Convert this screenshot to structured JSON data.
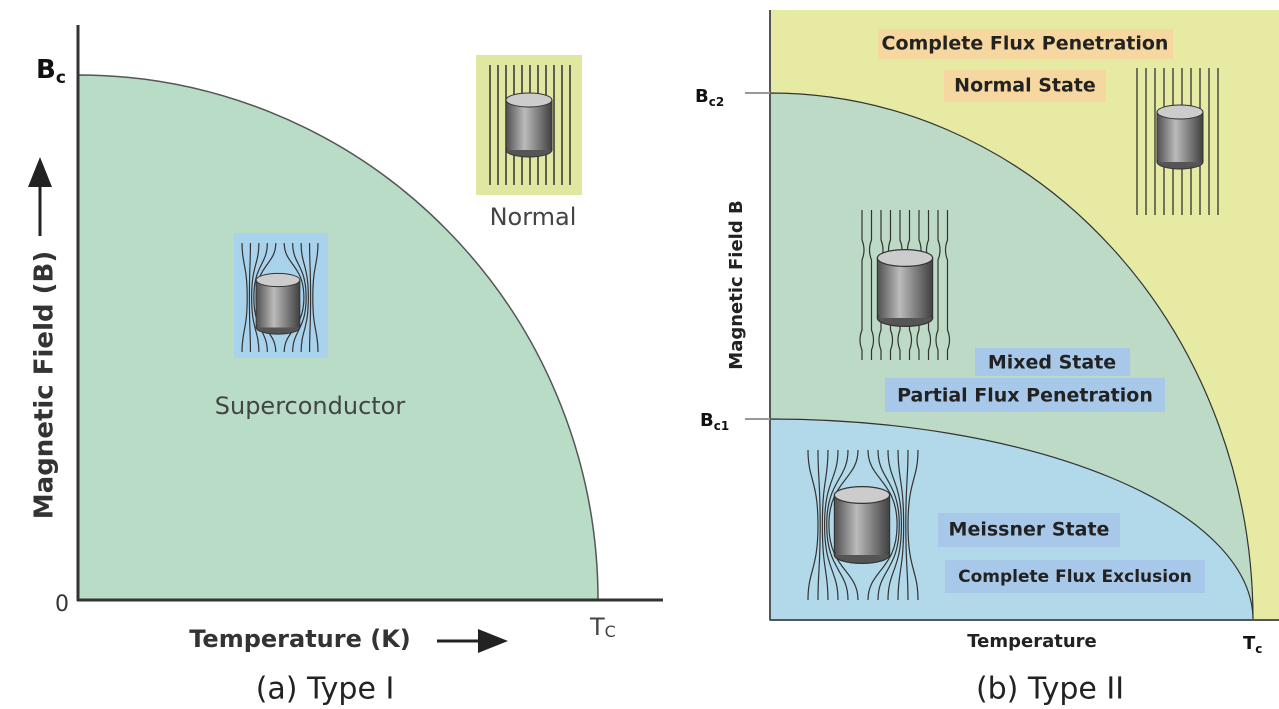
{
  "type_1": {
    "y_axis_top_label": {
      "main": "B",
      "sub": "c"
    },
    "y_axis_title": "Magnetic Field (B)",
    "origin_label": "0",
    "x_axis_title": "Temperature (K)",
    "x_axis_end_label": {
      "main": "T",
      "sub": "C"
    },
    "region_normal": "Normal",
    "region_superconductor": "Superconductor",
    "caption": "(a) Type I"
  },
  "type_2": {
    "normal_labels": [
      "Complete Flux Penetration",
      "Normal State"
    ],
    "upper_critical_label": {
      "main": "B",
      "sub": "c2"
    },
    "lower_critical_label": {
      "main": "B",
      "sub": "c1"
    },
    "y_axis_title": "Magnetic Field B",
    "mixed_labels": [
      "Mixed State",
      "Partial Flux Penetration"
    ],
    "meissner_labels": [
      "Meissner State",
      "Complete Flux Exclusion"
    ],
    "x_axis_title": "Temperature",
    "x_axis_end_label": {
      "main": "T",
      "sub": "c"
    },
    "caption": "(b) Type II"
  }
}
